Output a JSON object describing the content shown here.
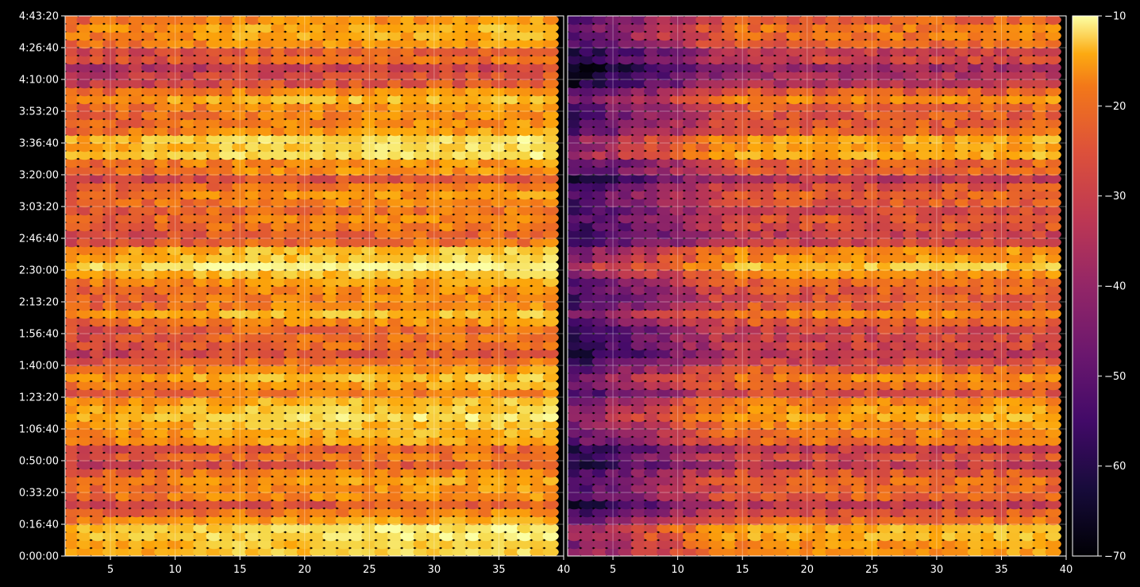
{
  "chart_data": {
    "type": "heatmap",
    "title": "",
    "xlabel": "",
    "ylabel": "",
    "grid": true,
    "colormap": "inferno",
    "background": "#000000",
    "grid_color": "#ffffff",
    "y_axis": {
      "range_seconds": [
        0,
        17000
      ],
      "tick_values_seconds": [
        0,
        1000,
        2000,
        3000,
        4000,
        5000,
        6000,
        7000,
        8000,
        9000,
        10000,
        11000,
        12000,
        13000,
        14000,
        15000,
        16000,
        17000
      ],
      "tick_labels": [
        "0:00:00",
        "0:16:40",
        "0:33:20",
        "0:50:00",
        "1:06:40",
        "1:23:20",
        "1:40:00",
        "1:56:40",
        "2:13:20",
        "2:30:00",
        "2:46:40",
        "3:03:20",
        "3:20:00",
        "3:36:40",
        "3:53:20",
        "4:10:00",
        "4:26:40",
        "4:43:20"
      ]
    },
    "panels": [
      {
        "name": "",
        "x_range": [
          1.5,
          40
        ],
        "x_ticks": [
          5,
          10,
          15,
          20,
          25,
          30,
          35,
          40
        ],
        "x_tick_labels": [
          "5",
          "10",
          "15",
          "20",
          "25",
          "30",
          "35",
          "40"
        ],
        "channels": [
          2,
          39
        ],
        "overall_level_db": -27,
        "low_channel_offset_db": -4
      },
      {
        "name": "",
        "x_range": [
          1.5,
          40
        ],
        "x_ticks": [
          5,
          10,
          15,
          20,
          25,
          30,
          35,
          40
        ],
        "x_tick_labels": [
          "5",
          "10",
          "15",
          "20",
          "25",
          "30",
          "35",
          "40"
        ],
        "channels": [
          2,
          39
        ],
        "overall_level_db": -34,
        "low_channel_offset_db": -22
      }
    ],
    "colorbar": {
      "range": [
        -70,
        -10
      ],
      "ticks": [
        -70,
        -60,
        -50,
        -40,
        -30,
        -20,
        -10
      ],
      "tick_labels": [
        "−70",
        "−60",
        "−50",
        "−40",
        "−30",
        "−20",
        "−10"
      ]
    }
  }
}
